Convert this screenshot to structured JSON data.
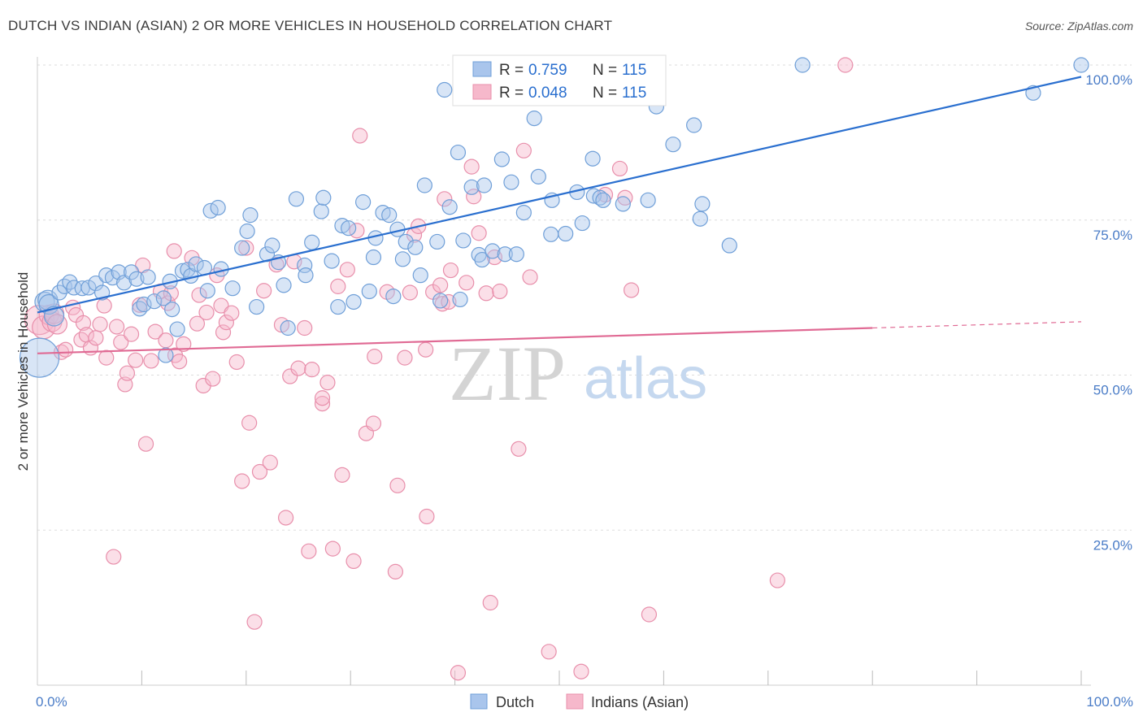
{
  "header": {
    "title": "DUTCH VS INDIAN (ASIAN) 2 OR MORE VEHICLES IN HOUSEHOLD CORRELATION CHART",
    "source": "Source: ZipAtlas.com"
  },
  "watermark": {
    "zip": "ZIP",
    "atlas": "atlas"
  },
  "colors": {
    "dutch_fill": "#a9c5ec",
    "dutch_stroke": "#6f9fd8",
    "dutch_line": "#2a6fcf",
    "indian_fill": "#f6b8cb",
    "indian_stroke": "#e88fab",
    "indian_line": "#e06a94",
    "grid": "#dddddd",
    "axis_text": "#4a7cc7"
  },
  "legend": {
    "rows": [
      {
        "r_label": "R =",
        "r_value": "0.759",
        "n_label": "N =",
        "n_value": "115"
      },
      {
        "r_label": "R =",
        "r_value": "0.048",
        "n_label": "N =",
        "n_value": "115"
      }
    ]
  },
  "bottom_legend": {
    "dutch": "Dutch",
    "indian": "Indians (Asian)"
  },
  "chart_data": {
    "type": "scatter",
    "title": "DUTCH VS INDIAN (ASIAN) 2 OR MORE VEHICLES IN HOUSEHOLD CORRELATION CHART",
    "xlabel": "",
    "ylabel": "2 or more Vehicles in Household",
    "xlim": [
      0,
      100
    ],
    "ylim": [
      0,
      100
    ],
    "x_tick_labels": [
      "0.0%",
      "100.0%"
    ],
    "y_ticks": [
      {
        "value": 25,
        "label": "25.0%"
      },
      {
        "value": 50,
        "label": "50.0%"
      },
      {
        "value": 75,
        "label": "75.0%"
      },
      {
        "value": 100,
        "label": "100.0%"
      }
    ],
    "grid": true,
    "legend_position": "top-center",
    "series": [
      {
        "name": "Dutch",
        "r": 0.759,
        "n": 115,
        "trend": {
          "x": [
            0,
            100
          ],
          "y": [
            60.1,
            98.1
          ]
        },
        "points": [
          [
            0.2,
            52.8,
            24
          ],
          [
            0.7,
            61.8,
            12
          ],
          [
            1.0,
            62.1,
            12
          ],
          [
            1.1,
            61.4,
            12
          ],
          [
            1.6,
            59.5,
            12
          ],
          [
            2.1,
            63.3,
            9
          ],
          [
            2.6,
            64.3,
            9
          ],
          [
            3.1,
            65.0,
            9
          ],
          [
            3.5,
            64.1,
            9
          ],
          [
            4.3,
            64.0,
            9
          ],
          [
            4.9,
            64.1,
            9
          ],
          [
            5.6,
            64.8,
            9
          ],
          [
            6.2,
            63.3,
            9
          ],
          [
            6.6,
            66.1,
            9
          ],
          [
            7.2,
            65.7,
            9
          ],
          [
            7.8,
            66.6,
            9
          ],
          [
            8.3,
            64.9,
            9
          ],
          [
            9.0,
            66.6,
            9
          ],
          [
            9.5,
            65.5,
            9
          ],
          [
            9.8,
            60.7,
            9
          ],
          [
            10.2,
            61.4,
            9
          ],
          [
            10.6,
            65.8,
            9
          ],
          [
            11.2,
            61.9,
            9
          ],
          [
            12.1,
            62.4,
            9
          ],
          [
            12.7,
            65.1,
            9
          ],
          [
            12.3,
            53.2,
            9
          ],
          [
            12.9,
            60.6,
            9
          ],
          [
            13.4,
            57.4,
            9
          ],
          [
            13.9,
            66.8,
            9
          ],
          [
            14.4,
            67.0,
            9
          ],
          [
            14.7,
            66.0,
            9
          ],
          [
            15.2,
            67.9,
            9
          ],
          [
            16.0,
            67.3,
            9
          ],
          [
            16.3,
            63.6,
            9
          ],
          [
            16.6,
            76.5,
            9
          ],
          [
            17.3,
            77.0,
            9
          ],
          [
            17.6,
            67.1,
            9
          ],
          [
            18.7,
            64.0,
            9
          ],
          [
            19.6,
            70.5,
            9
          ],
          [
            20.1,
            73.2,
            9
          ],
          [
            20.4,
            75.8,
            9
          ],
          [
            21.0,
            61.0,
            9
          ],
          [
            22.0,
            69.5,
            9
          ],
          [
            22.5,
            70.9,
            9
          ],
          [
            23.1,
            68.2,
            9
          ],
          [
            23.6,
            64.5,
            9
          ],
          [
            24.0,
            57.6,
            9
          ],
          [
            24.8,
            78.4,
            9
          ],
          [
            25.6,
            67.7,
            9
          ],
          [
            25.7,
            66.1,
            9
          ],
          [
            26.3,
            71.4,
            9
          ],
          [
            27.2,
            76.4,
            9
          ],
          [
            27.4,
            78.6,
            9
          ],
          [
            28.2,
            68.4,
            9
          ],
          [
            28.8,
            61.0,
            9
          ],
          [
            29.2,
            74.1,
            9
          ],
          [
            29.8,
            73.7,
            9
          ],
          [
            30.3,
            61.8,
            9
          ],
          [
            31.2,
            77.9,
            9
          ],
          [
            31.8,
            63.5,
            9
          ],
          [
            32.2,
            69.0,
            9
          ],
          [
            32.4,
            72.1,
            9
          ],
          [
            33.1,
            76.2,
            9
          ],
          [
            33.7,
            75.8,
            9
          ],
          [
            34.1,
            62.7,
            9
          ],
          [
            34.5,
            73.5,
            9
          ],
          [
            35.3,
            71.5,
            9
          ],
          [
            35.0,
            68.7,
            9
          ],
          [
            36.2,
            70.6,
            9
          ],
          [
            36.7,
            66.1,
            9
          ],
          [
            37.1,
            80.6,
            9
          ],
          [
            38.3,
            71.5,
            9
          ],
          [
            38.6,
            62.0,
            9
          ],
          [
            39.0,
            96.0,
            9
          ],
          [
            39.5,
            77.1,
            9
          ],
          [
            40.3,
            85.9,
            9
          ],
          [
            40.5,
            62.2,
            9
          ],
          [
            40.8,
            71.7,
            9
          ],
          [
            41.6,
            80.3,
            9
          ],
          [
            42.3,
            69.4,
            9
          ],
          [
            42.6,
            68.6,
            9
          ],
          [
            42.8,
            80.6,
            9
          ],
          [
            43.6,
            70.0,
            9
          ],
          [
            44.5,
            84.8,
            9
          ],
          [
            44.8,
            69.5,
            9
          ],
          [
            45.4,
            81.1,
            9
          ],
          [
            45.9,
            69.5,
            9
          ],
          [
            46.6,
            76.2,
            9
          ],
          [
            47.6,
            91.4,
            9
          ],
          [
            48.0,
            82.0,
            9
          ],
          [
            49.2,
            72.7,
            9
          ],
          [
            49.3,
            78.2,
            9
          ],
          [
            50.6,
            72.8,
            9
          ],
          [
            51.7,
            79.5,
            9
          ],
          [
            52.2,
            74.5,
            9
          ],
          [
            53.2,
            84.9,
            9
          ],
          [
            53.3,
            78.9,
            9
          ],
          [
            53.9,
            78.6,
            9
          ],
          [
            54.2,
            78.2,
            9
          ],
          [
            56.1,
            77.6,
            9
          ],
          [
            58.5,
            78.2,
            9
          ],
          [
            59.3,
            93.3,
            9
          ],
          [
            60.9,
            87.2,
            9
          ],
          [
            62.9,
            90.3,
            9
          ],
          [
            63.5,
            75.2,
            9
          ],
          [
            63.7,
            77.6,
            9
          ],
          [
            66.3,
            70.9,
            9
          ],
          [
            73.3,
            100.0,
            9
          ],
          [
            95.4,
            95.5,
            9
          ],
          [
            100.0,
            100.0,
            9
          ]
        ]
      },
      {
        "name": "Indians (Asian)",
        "r": 0.048,
        "n": 115,
        "trend": {
          "x": [
            0,
            80
          ],
          "y": [
            53.5,
            57.6
          ]
        },
        "trend_dashed": {
          "x": [
            80,
            100
          ],
          "y": [
            57.6,
            58.6
          ]
        },
        "points": [
          [
            0.2,
            58.9,
            18
          ],
          [
            0.6,
            57.7,
            14
          ],
          [
            1.1,
            59.7,
            12
          ],
          [
            1.4,
            58.6,
            12
          ],
          [
            1.6,
            59.9,
            12
          ],
          [
            1.9,
            58.2,
            12
          ],
          [
            2.3,
            53.7,
            9
          ],
          [
            2.7,
            54.1,
            9
          ],
          [
            3.4,
            60.9,
            9
          ],
          [
            3.7,
            59.7,
            9
          ],
          [
            4.2,
            55.7,
            9
          ],
          [
            4.4,
            58.4,
            9
          ],
          [
            4.7,
            56.5,
            9
          ],
          [
            5.1,
            54.4,
            9
          ],
          [
            5.6,
            56.0,
            9
          ],
          [
            6.0,
            58.2,
            9
          ],
          [
            6.4,
            61.2,
            9
          ],
          [
            6.6,
            52.8,
            9
          ],
          [
            7.3,
            20.7,
            9
          ],
          [
            7.6,
            57.8,
            9
          ],
          [
            8.0,
            55.3,
            9
          ],
          [
            8.4,
            48.5,
            9
          ],
          [
            8.6,
            50.3,
            9
          ],
          [
            9.0,
            56.6,
            9
          ],
          [
            9.4,
            52.4,
            9
          ],
          [
            9.8,
            61.3,
            9
          ],
          [
            10.1,
            67.7,
            9
          ],
          [
            10.4,
            38.9,
            9
          ],
          [
            10.9,
            52.3,
            9
          ],
          [
            11.3,
            57.0,
            9
          ],
          [
            11.8,
            63.5,
            9
          ],
          [
            12.3,
            55.6,
            9
          ],
          [
            12.5,
            61.6,
            9
          ],
          [
            12.8,
            63.2,
            9
          ],
          [
            13.1,
            70.0,
            9
          ],
          [
            13.2,
            53.2,
            9
          ],
          [
            13.6,
            52.2,
            9
          ],
          [
            14.0,
            55.0,
            9
          ],
          [
            14.8,
            68.9,
            9
          ],
          [
            15.3,
            58.3,
            9
          ],
          [
            15.5,
            62.9,
            9
          ],
          [
            15.9,
            48.3,
            9
          ],
          [
            16.2,
            60.1,
            9
          ],
          [
            16.8,
            49.4,
            9
          ],
          [
            17.2,
            66.1,
            9
          ],
          [
            17.6,
            61.2,
            9
          ],
          [
            17.8,
            56.9,
            9
          ],
          [
            18.1,
            58.5,
            9
          ],
          [
            18.6,
            60.0,
            9
          ],
          [
            19.1,
            52.1,
            9
          ],
          [
            19.6,
            32.9,
            9
          ],
          [
            20.0,
            70.5,
            9
          ],
          [
            20.3,
            42.3,
            9
          ],
          [
            20.8,
            10.2,
            9
          ],
          [
            21.3,
            34.4,
            9
          ],
          [
            21.7,
            63.6,
            9
          ],
          [
            22.3,
            35.9,
            9
          ],
          [
            22.9,
            67.8,
            9
          ],
          [
            23.4,
            58.1,
            9
          ],
          [
            23.8,
            27.0,
            9
          ],
          [
            24.2,
            49.8,
            9
          ],
          [
            24.6,
            68.3,
            9
          ],
          [
            25.0,
            51.1,
            9
          ],
          [
            25.6,
            57.6,
            9
          ],
          [
            26.0,
            21.6,
            9
          ],
          [
            26.3,
            50.9,
            9
          ],
          [
            27.3,
            45.4,
            9
          ],
          [
            27.3,
            46.3,
            9
          ],
          [
            27.8,
            48.8,
            9
          ],
          [
            28.3,
            22.0,
            9
          ],
          [
            28.8,
            64.3,
            9
          ],
          [
            29.2,
            33.9,
            9
          ],
          [
            29.7,
            67.0,
            9
          ],
          [
            30.3,
            20.0,
            9
          ],
          [
            30.6,
            73.3,
            9
          ],
          [
            30.9,
            88.6,
            9
          ],
          [
            31.5,
            40.6,
            9
          ],
          [
            32.2,
            42.2,
            9
          ],
          [
            32.3,
            53.0,
            9
          ],
          [
            33.5,
            63.4,
            9
          ],
          [
            34.3,
            18.3,
            9
          ],
          [
            34.5,
            32.2,
            9
          ],
          [
            35.2,
            52.8,
            9
          ],
          [
            35.7,
            63.3,
            9
          ],
          [
            36.1,
            72.6,
            9
          ],
          [
            36.5,
            74.0,
            9
          ],
          [
            37.2,
            54.1,
            9
          ],
          [
            37.3,
            27.2,
            9
          ],
          [
            37.9,
            63.4,
            9
          ],
          [
            38.6,
            64.5,
            9
          ],
          [
            38.8,
            61.5,
            9
          ],
          [
            39.0,
            78.4,
            9
          ],
          [
            39.4,
            61.8,
            9
          ],
          [
            39.6,
            66.9,
            9
          ],
          [
            40.3,
            2.0,
            9
          ],
          [
            41.1,
            64.9,
            9
          ],
          [
            41.6,
            83.6,
            9
          ],
          [
            41.8,
            78.8,
            9
          ],
          [
            42.3,
            72.9,
            9
          ],
          [
            43.0,
            63.2,
            9
          ],
          [
            43.4,
            13.3,
            9
          ],
          [
            43.8,
            69.0,
            9
          ],
          [
            44.3,
            63.5,
            9
          ],
          [
            46.1,
            38.1,
            9
          ],
          [
            46.6,
            86.2,
            9
          ],
          [
            47.2,
            65.8,
            9
          ],
          [
            49.0,
            5.4,
            9
          ],
          [
            52.1,
            2.2,
            9
          ],
          [
            54.4,
            79.1,
            9
          ],
          [
            55.8,
            83.3,
            9
          ],
          [
            56.3,
            78.6,
            9
          ],
          [
            56.9,
            63.7,
            9
          ],
          [
            58.6,
            11.4,
            9
          ],
          [
            70.9,
            16.9,
            9
          ],
          [
            77.4,
            100.0,
            9
          ]
        ]
      }
    ]
  }
}
